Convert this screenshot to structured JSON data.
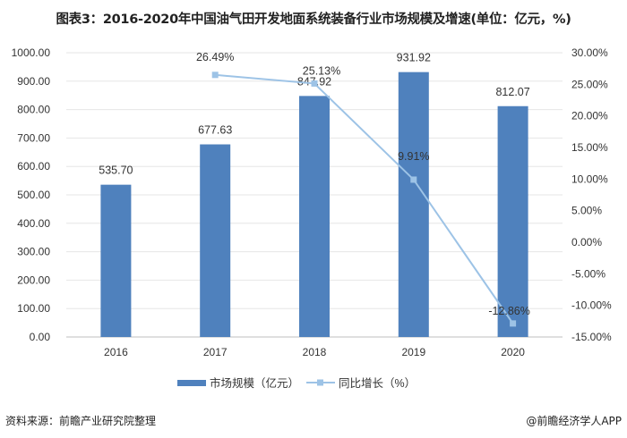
{
  "title": "图表3：2016-2020年中国油气田开发地面系统装备行业市场规模及增速(单位：亿元，%)",
  "source": "资料来源：前瞻产业研究院整理",
  "brand": "@前瞻经济学人APP",
  "chart_data": {
    "type": "bar+line",
    "categories": [
      "2016",
      "2017",
      "2018",
      "2019",
      "2020"
    ],
    "series": [
      {
        "name": "市场规模（亿元）",
        "type": "bar",
        "axis": "left",
        "color": "#4f81bd",
        "values": [
          535.7,
          677.63,
          847.92,
          931.92,
          812.07
        ],
        "labels": [
          "535.70",
          "677.63",
          "847.92",
          "931.92",
          "812.07"
        ]
      },
      {
        "name": "同比增长（%）",
        "type": "line",
        "axis": "right",
        "color": "#9dc3e6",
        "values": [
          null,
          26.49,
          25.13,
          9.91,
          -12.86
        ],
        "labels": [
          "",
          "26.49%",
          "25.13%",
          "9.91%",
          "-12.86%"
        ]
      }
    ],
    "left_axis": {
      "range": [
        0,
        1000
      ],
      "ticks": [
        "0.00",
        "100.00",
        "200.00",
        "300.00",
        "400.00",
        "500.00",
        "600.00",
        "700.00",
        "800.00",
        "900.00",
        "1000.00"
      ]
    },
    "right_axis": {
      "range": [
        -15,
        30
      ],
      "ticks": [
        "-15.00%",
        "-10.00%",
        "-5.00%",
        "0.00%",
        "5.00%",
        "10.00%",
        "15.00%",
        "20.00%",
        "25.00%",
        "30.00%"
      ]
    },
    "legend": "bottom"
  }
}
